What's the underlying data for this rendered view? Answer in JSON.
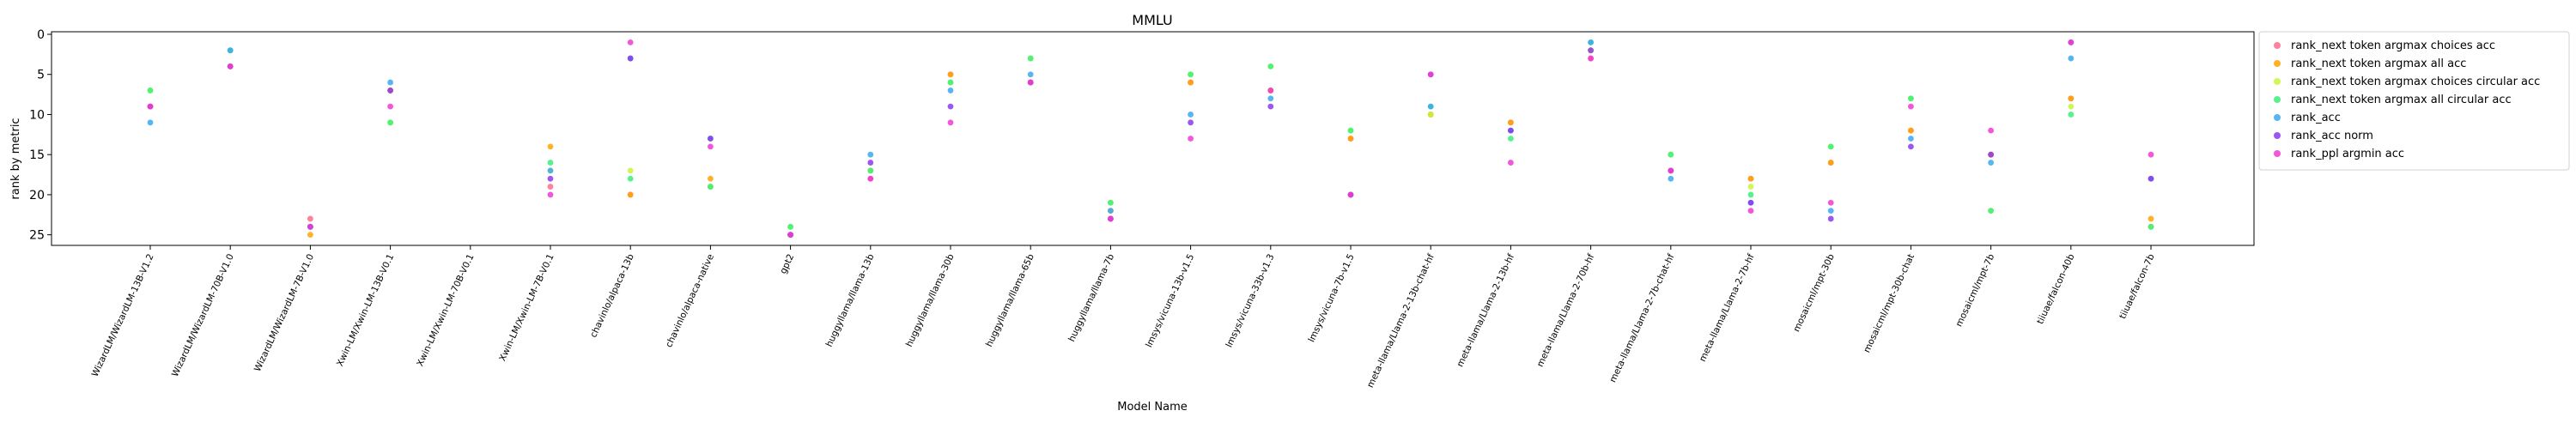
{
  "chart_data": {
    "type": "scatter",
    "title": "MMLU",
    "xlabel": "Model Name",
    "ylabel": "rank by metric",
    "ylim": [
      26,
      0
    ],
    "y_inverted": true,
    "y_ticks": [
      0,
      5,
      10,
      15,
      20,
      25
    ],
    "grid": false,
    "legend_position": "outside-top-right",
    "categories": [
      "WizardLM/WizardLM-13B-V1.2",
      "WizardLM/WizardLM-70B-V1.0",
      "WizardLM/WizardLM-7B-V1.0",
      "Xwin-LM/Xwin-LM-13B-V0.1",
      "Xwin-LM/Xwin-LM-70B-V0.1",
      "Xwin-LM/Xwin-LM-7B-V0.1",
      "chavinlo/alpaca-13b",
      "chavinlo/alpaca-native",
      "gpt2",
      "huggyllama/llama-13b",
      "huggyllama/llama-30b",
      "huggyllama/llama-65b",
      "huggyllama/llama-7b",
      "lmsys/vicuna-13b-v1.5",
      "lmsys/vicuna-33b-v1.3",
      "lmsys/vicuna-7b-v1.5",
      "meta-llama/Llama-2-13b-chat-hf",
      "meta-llama/Llama-2-13b-hf",
      "meta-llama/Llama-2-70b-hf",
      "meta-llama/Llama-2-7b-chat-hf",
      "meta-llama/Llama-2-7b-hf",
      "mosaicml/mpt-30b",
      "mosaicml/mpt-30b-chat",
      "mosaicml/mpt-7b",
      "tiiuae/falcon-40b",
      "tiiuae/falcon-7b"
    ],
    "series": [
      {
        "name": "rank_next token argmax choices acc",
        "color": "#ff6b8a",
        "values": [
          9,
          4,
          23,
          7,
          null,
          19,
          20,
          19,
          25,
          18,
          5,
          6,
          23,
          6,
          7,
          13,
          10,
          11,
          3,
          17,
          18,
          16,
          12,
          15,
          8,
          24
        ]
      },
      {
        "name": "rank_next token argmax all acc",
        "color": "#ffa500",
        "values": [
          9,
          4,
          25,
          7,
          null,
          14,
          20,
          18,
          25,
          17,
          5,
          6,
          22,
          6,
          7,
          13,
          10,
          11,
          2,
          17,
          18,
          16,
          12,
          15,
          8,
          23
        ]
      },
      {
        "name": "rank_next token argmax choices circular acc",
        "color": "#c8f53a",
        "values": [
          7,
          4,
          24,
          11,
          null,
          17,
          17,
          19,
          24,
          17,
          6,
          3,
          21,
          5,
          4,
          12,
          10,
          12,
          2,
          15,
          19,
          14,
          8,
          22,
          9,
          24
        ]
      },
      {
        "name": "rank_next token argmax all circular acc",
        "color": "#3af07a",
        "values": [
          7,
          2,
          24,
          11,
          null,
          16,
          18,
          19,
          24,
          17,
          6,
          3,
          21,
          5,
          4,
          12,
          9,
          13,
          1,
          15,
          20,
          14,
          8,
          22,
          10,
          24
        ]
      },
      {
        "name": "rank_acc",
        "color": "#3aa8f0",
        "values": [
          11,
          2,
          24,
          6,
          null,
          17,
          3,
          13,
          25,
          15,
          7,
          5,
          22,
          10,
          8,
          20,
          9,
          12,
          1,
          18,
          21,
          22,
          13,
          16,
          3,
          18
        ]
      },
      {
        "name": "rank_acc norm",
        "color": "#8a3af0",
        "values": [
          9,
          4,
          24,
          7,
          null,
          18,
          3,
          13,
          25,
          16,
          9,
          6,
          23,
          11,
          9,
          20,
          5,
          12,
          2,
          17,
          21,
          23,
          14,
          15,
          1,
          18
        ]
      },
      {
        "name": "rank_ppl argmin acc",
        "color": "#f03ad2",
        "values": [
          9,
          4,
          24,
          9,
          null,
          20,
          1,
          14,
          25,
          18,
          11,
          6,
          23,
          13,
          7,
          20,
          5,
          16,
          3,
          17,
          22,
          21,
          9,
          12,
          1,
          15
        ]
      }
    ]
  }
}
